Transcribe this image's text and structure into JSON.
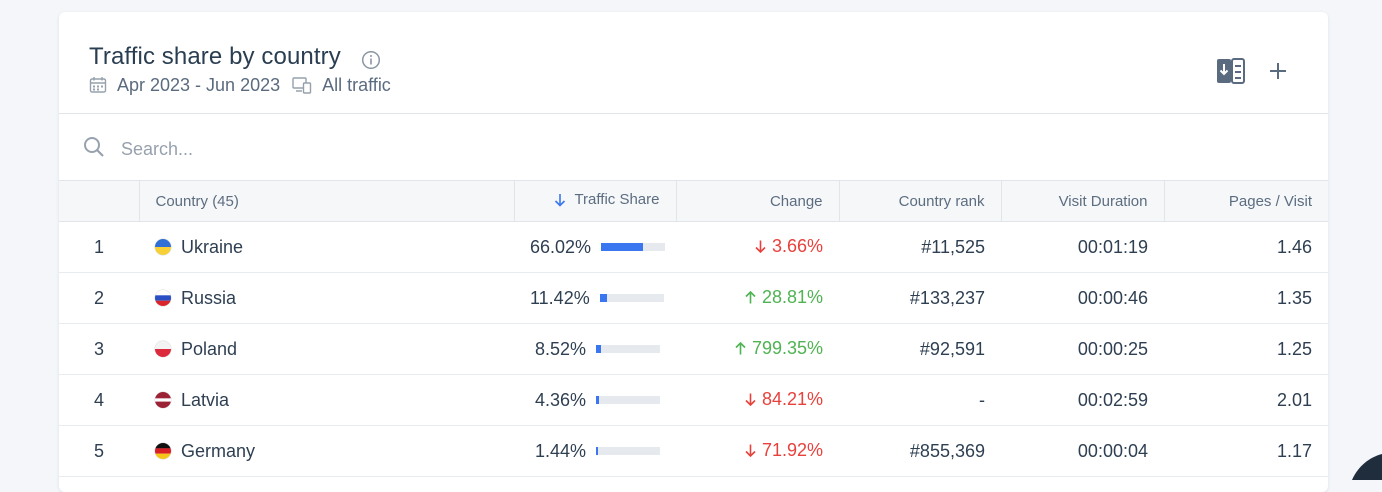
{
  "widget": {
    "title": "Traffic share by country",
    "date_range": "Apr 2023 - Jun 2023",
    "traffic_type": "All traffic"
  },
  "search": {
    "placeholder": "Search..."
  },
  "columns": {
    "rank": "",
    "country": "Country (45)",
    "traffic_share": "Traffic Share",
    "change": "Change",
    "country_rank": "Country rank",
    "visit_duration": "Visit Duration",
    "pages_visit": "Pages / Visit"
  },
  "rows": [
    {
      "rank": "1",
      "country": "Ukraine",
      "flag": "ukraine-flag-icon",
      "share": "66.02%",
      "share_value": 66.02,
      "change": "3.66%",
      "direction": "down",
      "country_rank": "#11,525",
      "duration": "00:01:19",
      "pages": "1.46"
    },
    {
      "rank": "2",
      "country": "Russia",
      "flag": "russia-flag-icon",
      "share": "11.42%",
      "share_value": 11.42,
      "change": "28.81%",
      "direction": "up",
      "country_rank": "#133,237",
      "duration": "00:00:46",
      "pages": "1.35"
    },
    {
      "rank": "3",
      "country": "Poland",
      "flag": "poland-flag-icon",
      "share": "8.52%",
      "share_value": 8.52,
      "change": "799.35%",
      "direction": "up",
      "country_rank": "#92,591",
      "duration": "00:00:25",
      "pages": "1.25"
    },
    {
      "rank": "4",
      "country": "Latvia",
      "flag": "latvia-flag-icon",
      "share": "4.36%",
      "share_value": 4.36,
      "change": "84.21%",
      "direction": "down",
      "country_rank": "-",
      "duration": "00:02:59",
      "pages": "2.01"
    },
    {
      "rank": "5",
      "country": "Germany",
      "flag": "germany-flag-icon",
      "share": "1.44%",
      "share_value": 1.44,
      "change": "71.92%",
      "direction": "down",
      "country_rank": "#855,369",
      "duration": "00:00:04",
      "pages": "1.17"
    }
  ],
  "colors": {
    "accent": "#3a76f0",
    "down": "#e8413c",
    "up": "#4fb352"
  }
}
